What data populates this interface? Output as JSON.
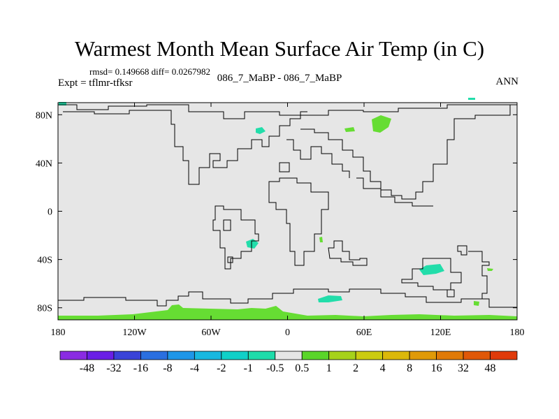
{
  "title": "Warmest Month Mean Surface Air Temp (in C)",
  "stats": "rmsd= 0.149668 diff= 0.0267982",
  "expt": "Expt = tflmr-tfksr",
  "subtitle": "086_7_MaBP - 086_7_MaBP",
  "period": "ANN",
  "colors": {
    "background_field": "#e6e6e6",
    "coastline": "#000000",
    "green_positive": "#66dd33",
    "cyan_negative": "#22ddaa"
  },
  "map": {
    "x_ticks": [
      {
        "lon": -180,
        "label": "180"
      },
      {
        "lon": -120,
        "label": "120W"
      },
      {
        "lon": -60,
        "label": "60W"
      },
      {
        "lon": 0,
        "label": "0"
      },
      {
        "lon": 60,
        "label": "60E"
      },
      {
        "lon": 120,
        "label": "120E"
      },
      {
        "lon": 180,
        "label": "180"
      }
    ],
    "y_ticks": [
      {
        "lat": 80,
        "label": "80N"
      },
      {
        "lat": 40,
        "label": "40N"
      },
      {
        "lat": 0,
        "label": "0"
      },
      {
        "lat": -40,
        "label": "40S"
      },
      {
        "lat": -80,
        "label": "80S"
      }
    ],
    "lon_range": [
      -180,
      180
    ],
    "lat_range": [
      -90,
      90
    ]
  },
  "colorbar": {
    "colors": [
      "#8a2be2",
      "#6a1fe6",
      "#3a43d8",
      "#2a6fe0",
      "#1e96e8",
      "#18b8e0",
      "#10d0c8",
      "#1edcaa",
      "#e6e6e6",
      "#5ad62a",
      "#a6d21a",
      "#cccc10",
      "#dcb80a",
      "#e09a08",
      "#e07a08",
      "#e05808",
      "#e03a0a"
    ],
    "labels": [
      "-48",
      "-32",
      "-16",
      "-8",
      "-4",
      "-2",
      "-1",
      "-0.5",
      "0.5",
      "1",
      "2",
      "4",
      "8",
      "16",
      "32",
      "48"
    ]
  }
}
